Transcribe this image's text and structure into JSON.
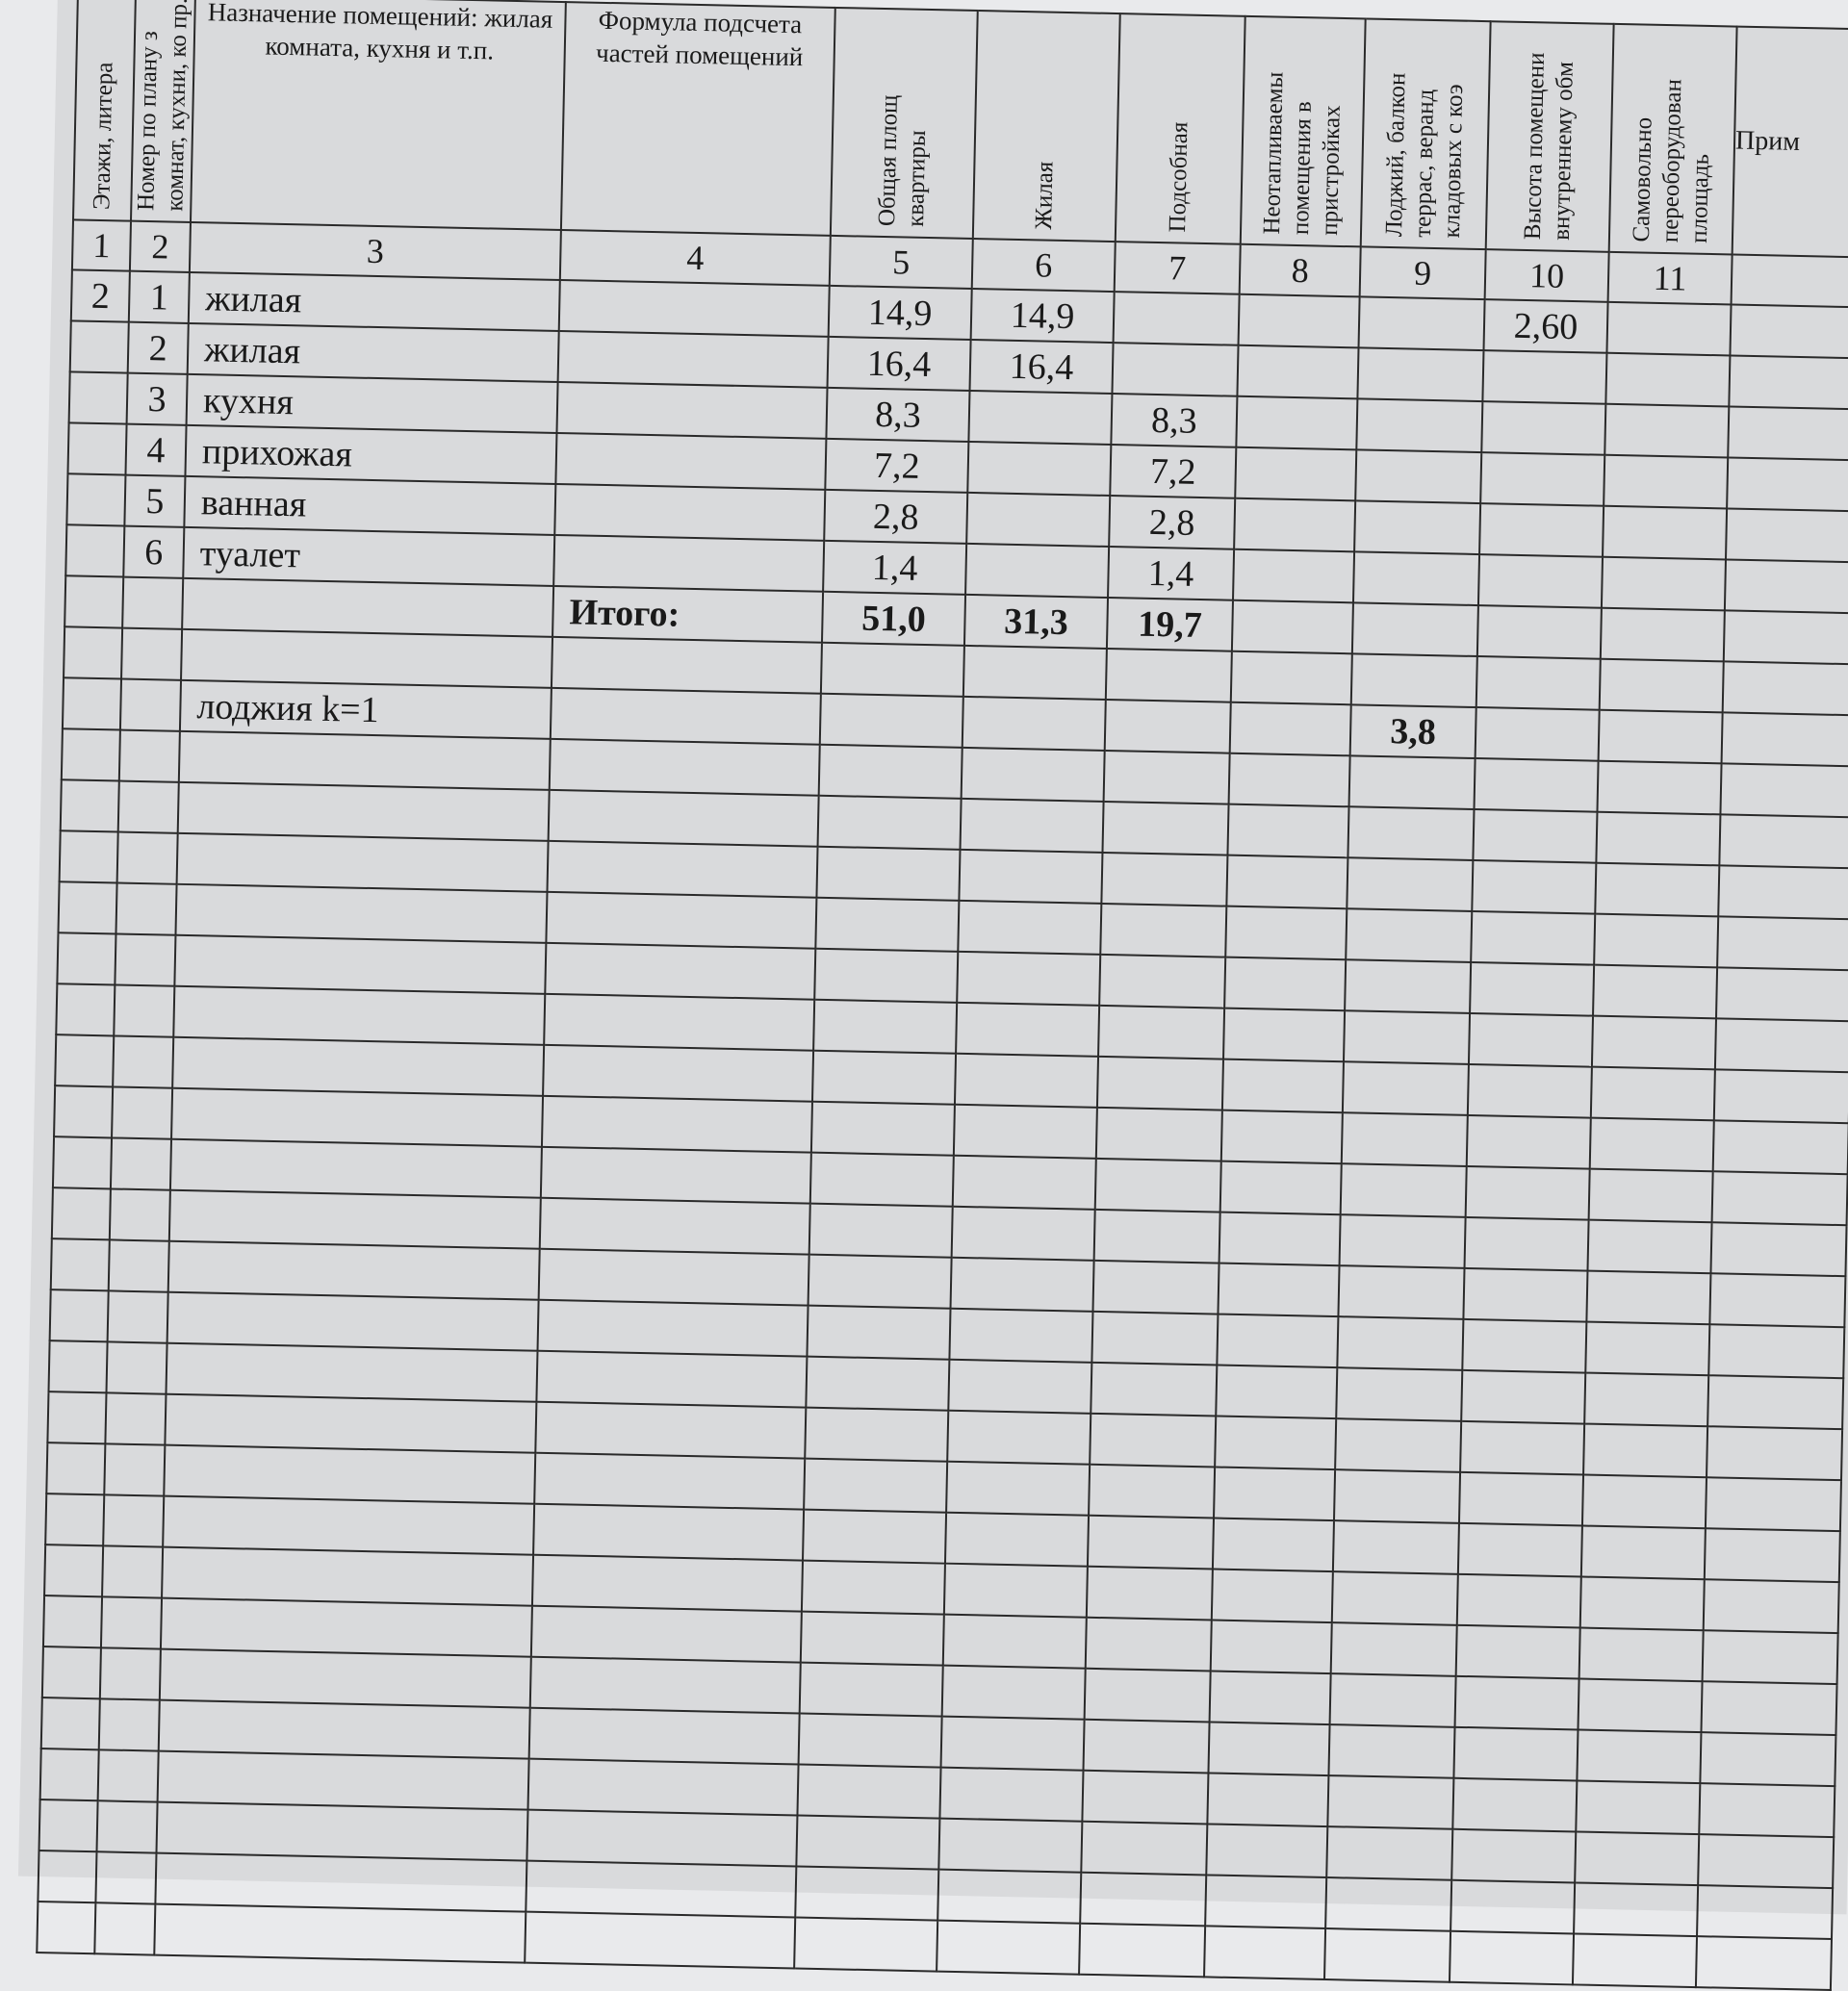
{
  "headers": [
    "Этажи, литера",
    "Номер по плану з комнат, кухни, ко пр.",
    "Назначение помещений: жилая комната, кухня и т.п.",
    "Формула подсчета частей помещений",
    "Общая площ квартиры",
    "Жилая",
    "Подсобная",
    "Неотапливаемы помещения в пристройках",
    "Лоджий, балкон террас, веранд кладовых с коэ",
    "Высота помещени внутреннему обм",
    "Самовольно переоборудован площадь",
    "Прим"
  ],
  "column_numbers": [
    "1",
    "2",
    "3",
    "4",
    "5",
    "6",
    "7",
    "8",
    "9",
    "10",
    "11",
    ""
  ],
  "floor": "2",
  "rows": [
    {
      "no": "1",
      "name": "жилая",
      "total": "14,9",
      "living": "14,9",
      "aux": "",
      "height": "2,60"
    },
    {
      "no": "2",
      "name": "жилая",
      "total": "16,4",
      "living": "16,4",
      "aux": "",
      "height": ""
    },
    {
      "no": "3",
      "name": "кухня",
      "total": "8,3",
      "living": "",
      "aux": "8,3",
      "height": ""
    },
    {
      "no": "4",
      "name": "прихожая",
      "total": "7,2",
      "living": "",
      "aux": "7,2",
      "height": ""
    },
    {
      "no": "5",
      "name": "ванная",
      "total": "2,8",
      "living": "",
      "aux": "2,8",
      "height": ""
    },
    {
      "no": "6",
      "name": "туалет",
      "total": "1,4",
      "living": "",
      "aux": "1,4",
      "height": ""
    }
  ],
  "totals": {
    "label": "Итого:",
    "total": "51,0",
    "living": "31,3",
    "aux": "19,7"
  },
  "loggia": {
    "label": "лоджия  k=1",
    "value": "3,8"
  }
}
